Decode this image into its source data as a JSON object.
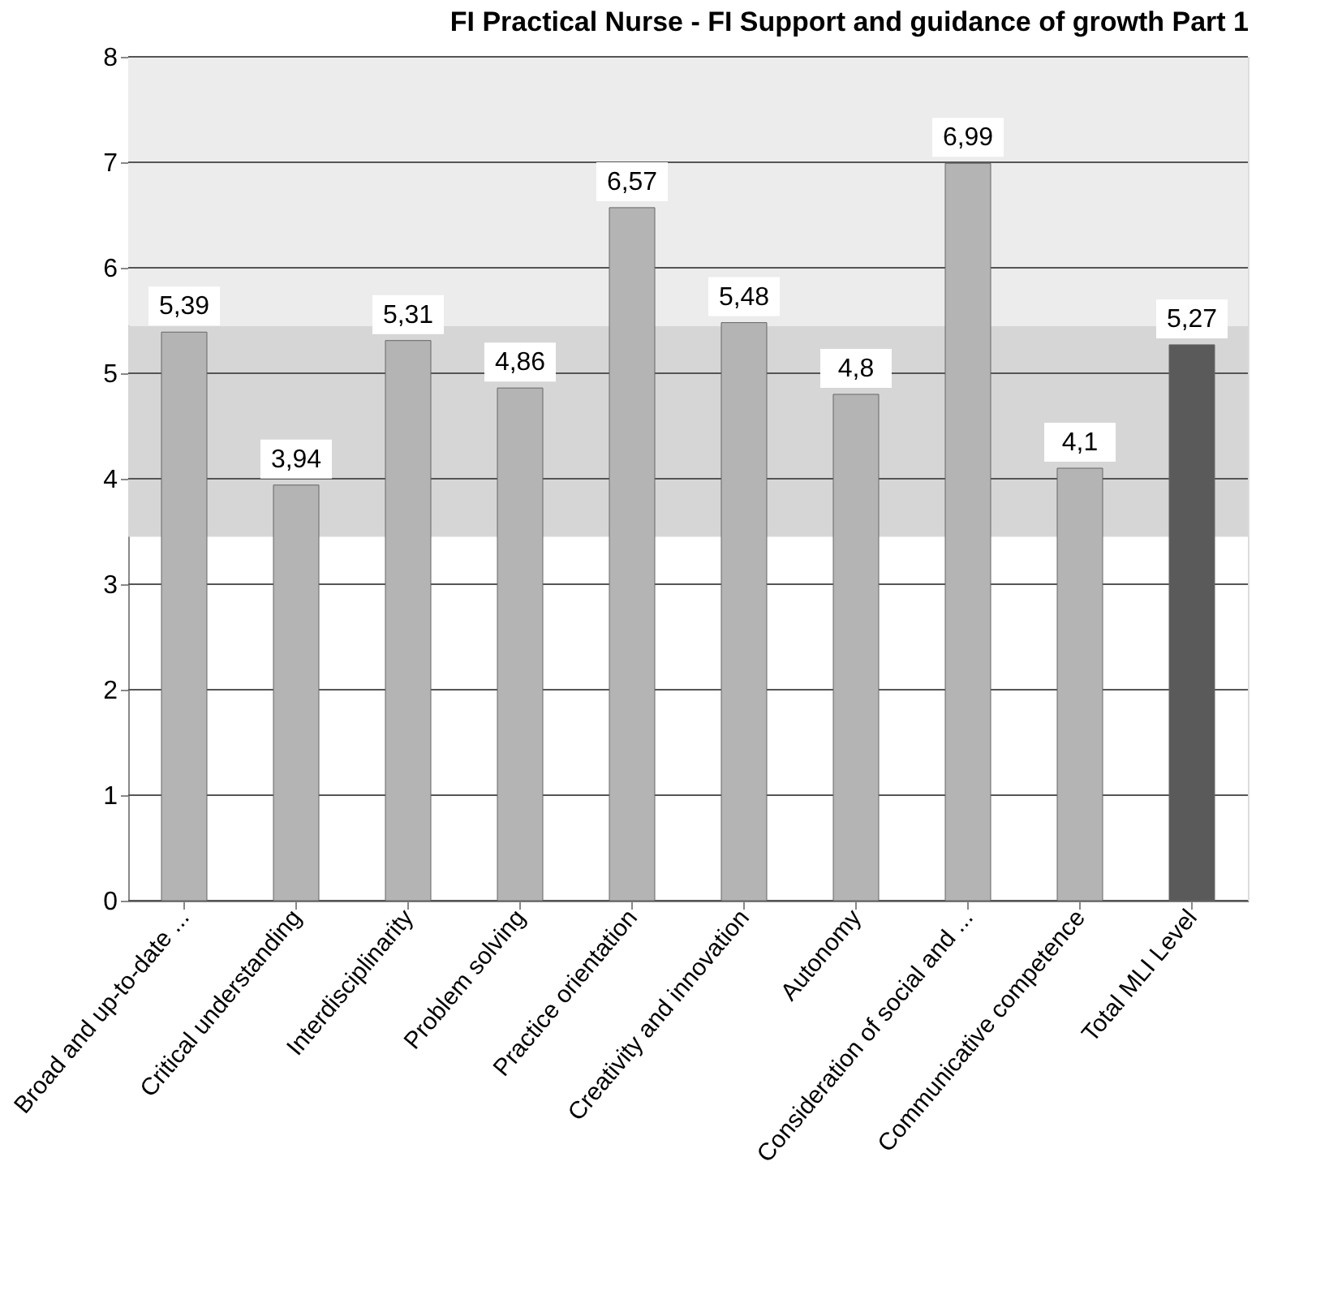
{
  "chart_data": {
    "type": "bar",
    "title": "FI Practical Nurse - FI Support and guidance of growth Part 1",
    "categories": [
      "Broad and up-to-date ...",
      "Critical understanding",
      "Interdisciplinarity",
      "Problem solving",
      "Practice orientation",
      "Creativity and innovation",
      "Autonomy",
      "Consideration of social and ...",
      "Communicative competence",
      "Total MLI Level"
    ],
    "values": [
      5.39,
      3.94,
      5.31,
      4.86,
      6.57,
      5.48,
      4.8,
      6.99,
      4.1,
      5.27
    ],
    "value_labels": [
      "5,39",
      "3,94",
      "5,31",
      "4,86",
      "6,57",
      "5,48",
      "4,8",
      "6,99",
      "4,1",
      "5,27"
    ],
    "colors": [
      "#b4b4b4",
      "#b4b4b4",
      "#b4b4b4",
      "#b4b4b4",
      "#b4b4b4",
      "#b4b4b4",
      "#b4b4b4",
      "#b4b4b4",
      "#b4b4b4",
      "#5a5a5a"
    ],
    "ylim": [
      0,
      8
    ],
    "yticks": [
      0,
      1,
      2,
      3,
      4,
      5,
      6,
      7,
      8
    ],
    "grid": "y",
    "bands": [
      {
        "axis": "y",
        "from": 3.45,
        "to": 5.45,
        "color": "#d6d6d6"
      },
      {
        "axis": "y",
        "from": 5.45,
        "to": 8,
        "color": "#ececec"
      }
    ]
  }
}
